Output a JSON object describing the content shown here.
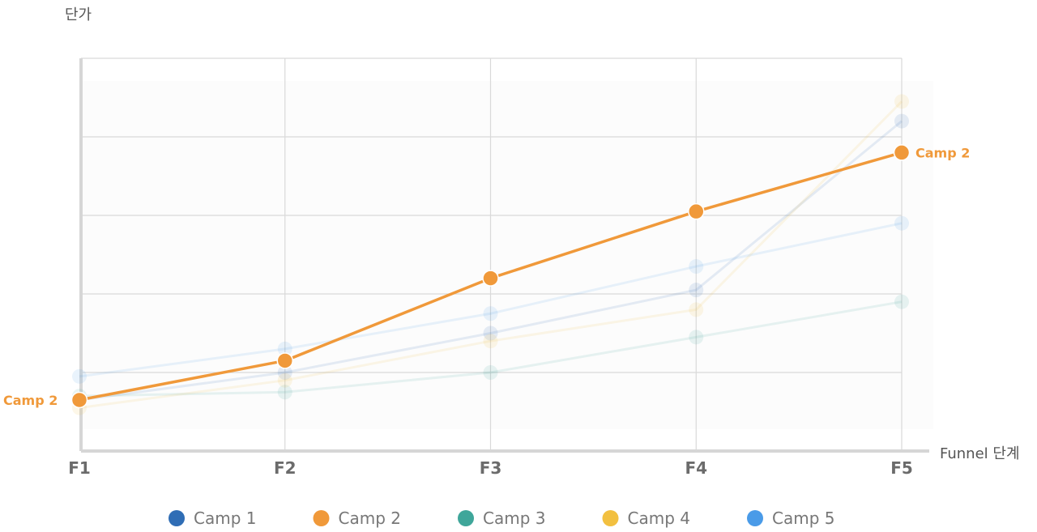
{
  "chart_data": {
    "type": "line",
    "categories": [
      "F1",
      "F2",
      "F3",
      "F4",
      "F5"
    ],
    "xlabel": "Funnel 단계",
    "ylabel": "단가",
    "ylim": [
      0,
      100
    ],
    "grid": true,
    "legend_position": "bottom",
    "highlight_series": "Camp 2",
    "series": [
      {
        "name": "Camp 1",
        "color": "#2f6db5",
        "values": [
          13,
          20,
          30,
          41,
          84
        ]
      },
      {
        "name": "Camp 2",
        "color": "#f0993a",
        "values": [
          13,
          23,
          44,
          61,
          76
        ]
      },
      {
        "name": "Camp 3",
        "color": "#3fa69a",
        "values": [
          14,
          15,
          20,
          29,
          38
        ]
      },
      {
        "name": "Camp 4",
        "color": "#f2c040",
        "values": [
          11,
          18,
          28,
          36,
          89
        ]
      },
      {
        "name": "Camp 5",
        "color": "#4a9be8",
        "values": [
          19,
          26,
          35,
          47,
          58
        ]
      }
    ],
    "end_labels": {
      "left": "Camp 2",
      "right": "Camp 2"
    }
  }
}
